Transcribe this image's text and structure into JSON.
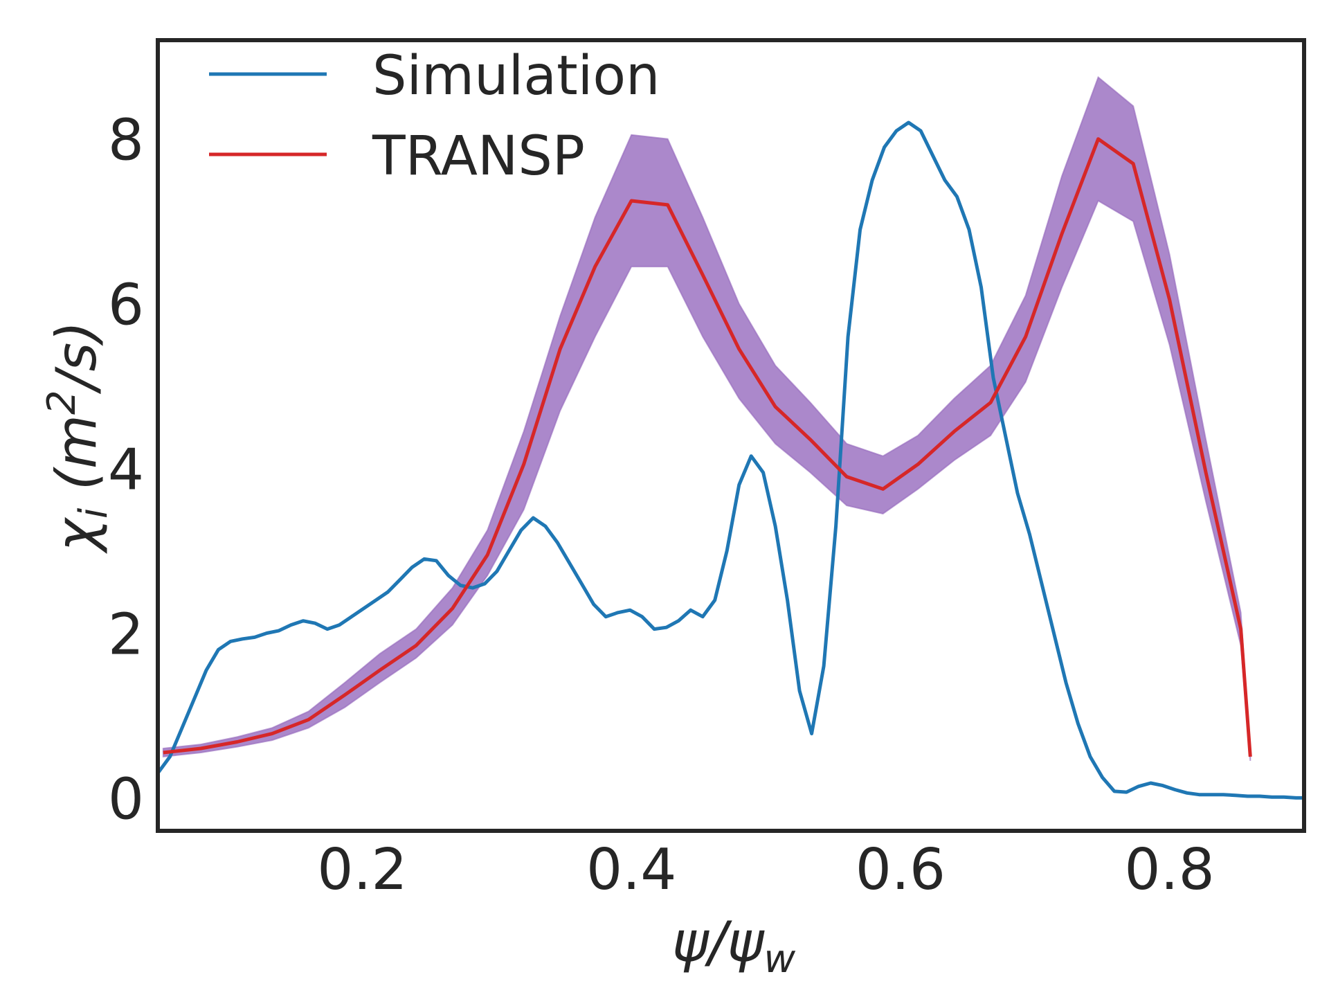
{
  "chart_data": {
    "type": "line",
    "title": "",
    "xlabel": "ψ/ψ_w",
    "ylabel": "χ_i (m²/s)",
    "xlabel_main": "ψ/ψ",
    "xlabel_sub": "w",
    "ylabel_main": "χ",
    "ylabel_sub": "i",
    "ylabel_unit_open": " (m",
    "ylabel_unit_sup": "2",
    "ylabel_unit_close": "/s)",
    "xlim": [
      0.048,
      0.9
    ],
    "ylim": [
      -0.4,
      9.2
    ],
    "xticks": [
      0.2,
      0.4,
      0.6,
      0.8
    ],
    "xtick_labels": [
      "0.2",
      "0.4",
      "0.6",
      "0.8"
    ],
    "yticks": [
      0,
      2,
      4,
      6,
      8
    ],
    "ytick_labels": [
      "0",
      "2",
      "4",
      "6",
      "8"
    ],
    "grid": false,
    "legend_position": "top-left",
    "colors": {
      "simulation": "#1f77b4",
      "transp": "#d62728",
      "band": "#9467bd",
      "axes": "#262626"
    },
    "series": [
      {
        "name": "Simulation",
        "color": "#1f77b4",
        "x": [
          0.048,
          0.057,
          0.066,
          0.075,
          0.084,
          0.093,
          0.102,
          0.111,
          0.12,
          0.129,
          0.138,
          0.147,
          0.156,
          0.165,
          0.174,
          0.183,
          0.192,
          0.201,
          0.21,
          0.219,
          0.228,
          0.237,
          0.246,
          0.255,
          0.264,
          0.273,
          0.282,
          0.291,
          0.3,
          0.309,
          0.318,
          0.327,
          0.336,
          0.345,
          0.354,
          0.363,
          0.372,
          0.381,
          0.39,
          0.399,
          0.408,
          0.417,
          0.426,
          0.435,
          0.444,
          0.453,
          0.462,
          0.471,
          0.48,
          0.489,
          0.498,
          0.507,
          0.516,
          0.525,
          0.534,
          0.543,
          0.552,
          0.561,
          0.57,
          0.579,
          0.588,
          0.597,
          0.606,
          0.615,
          0.624,
          0.633,
          0.642,
          0.651,
          0.66,
          0.669,
          0.678,
          0.687,
          0.696,
          0.705,
          0.714,
          0.723,
          0.732,
          0.741,
          0.75,
          0.759,
          0.768,
          0.777,
          0.786,
          0.795,
          0.804,
          0.813,
          0.822,
          0.831,
          0.84,
          0.849,
          0.858,
          0.867,
          0.876,
          0.885,
          0.894,
          0.9
        ],
        "values": [
          0.3,
          0.5,
          0.85,
          1.2,
          1.55,
          1.8,
          1.9,
          1.93,
          1.95,
          2.0,
          2.03,
          2.1,
          2.15,
          2.12,
          2.05,
          2.1,
          2.2,
          2.3,
          2.4,
          2.5,
          2.65,
          2.8,
          2.9,
          2.88,
          2.7,
          2.58,
          2.55,
          2.6,
          2.75,
          3.0,
          3.25,
          3.4,
          3.3,
          3.1,
          2.85,
          2.6,
          2.35,
          2.2,
          2.25,
          2.28,
          2.2,
          2.05,
          2.07,
          2.15,
          2.28,
          2.2,
          2.4,
          3.0,
          3.8,
          4.15,
          3.95,
          3.3,
          2.4,
          1.3,
          0.78,
          1.6,
          3.3,
          5.6,
          6.9,
          7.5,
          7.9,
          8.1,
          8.2,
          8.1,
          7.8,
          7.5,
          7.3,
          6.9,
          6.2,
          5.1,
          4.4,
          3.7,
          3.2,
          2.6,
          2.0,
          1.4,
          0.9,
          0.5,
          0.25,
          0.08,
          0.07,
          0.14,
          0.18,
          0.15,
          0.1,
          0.06,
          0.04,
          0.04,
          0.04,
          0.03,
          0.02,
          0.02,
          0.01,
          0.01,
          0.0,
          0.0
        ]
      },
      {
        "name": "TRANSP",
        "color": "#d62728",
        "x": [
          0.052,
          0.08,
          0.107,
          0.133,
          0.16,
          0.187,
          0.213,
          0.24,
          0.267,
          0.293,
          0.32,
          0.347,
          0.373,
          0.4,
          0.427,
          0.453,
          0.48,
          0.507,
          0.533,
          0.56,
          0.587,
          0.613,
          0.64,
          0.667,
          0.693,
          0.72,
          0.747,
          0.773,
          0.8,
          0.827,
          0.853,
          0.86
        ],
        "values": [
          0.55,
          0.6,
          0.68,
          0.78,
          0.95,
          1.25,
          1.55,
          1.85,
          2.3,
          2.95,
          4.05,
          5.45,
          6.45,
          7.25,
          7.2,
          6.35,
          5.45,
          4.75,
          4.35,
          3.9,
          3.75,
          4.05,
          4.45,
          4.8,
          5.6,
          6.85,
          8.0,
          7.7,
          6.05,
          3.95,
          2.05,
          0.5
        ],
        "band_lower": [
          0.5,
          0.55,
          0.62,
          0.7,
          0.85,
          1.1,
          1.4,
          1.7,
          2.1,
          2.7,
          3.5,
          4.7,
          5.6,
          6.45,
          6.45,
          5.6,
          4.85,
          4.3,
          3.95,
          3.55,
          3.45,
          3.75,
          4.1,
          4.4,
          5.05,
          6.2,
          7.25,
          7.0,
          5.5,
          3.6,
          1.85,
          0.45
        ],
        "band_upper": [
          0.6,
          0.65,
          0.74,
          0.85,
          1.05,
          1.4,
          1.75,
          2.05,
          2.55,
          3.25,
          4.45,
          5.85,
          7.05,
          8.05,
          8.0,
          7.05,
          6.0,
          5.25,
          4.8,
          4.3,
          4.15,
          4.4,
          4.85,
          5.25,
          6.1,
          7.55,
          8.75,
          8.4,
          6.6,
          4.35,
          2.25,
          0.55
        ]
      }
    ]
  }
}
